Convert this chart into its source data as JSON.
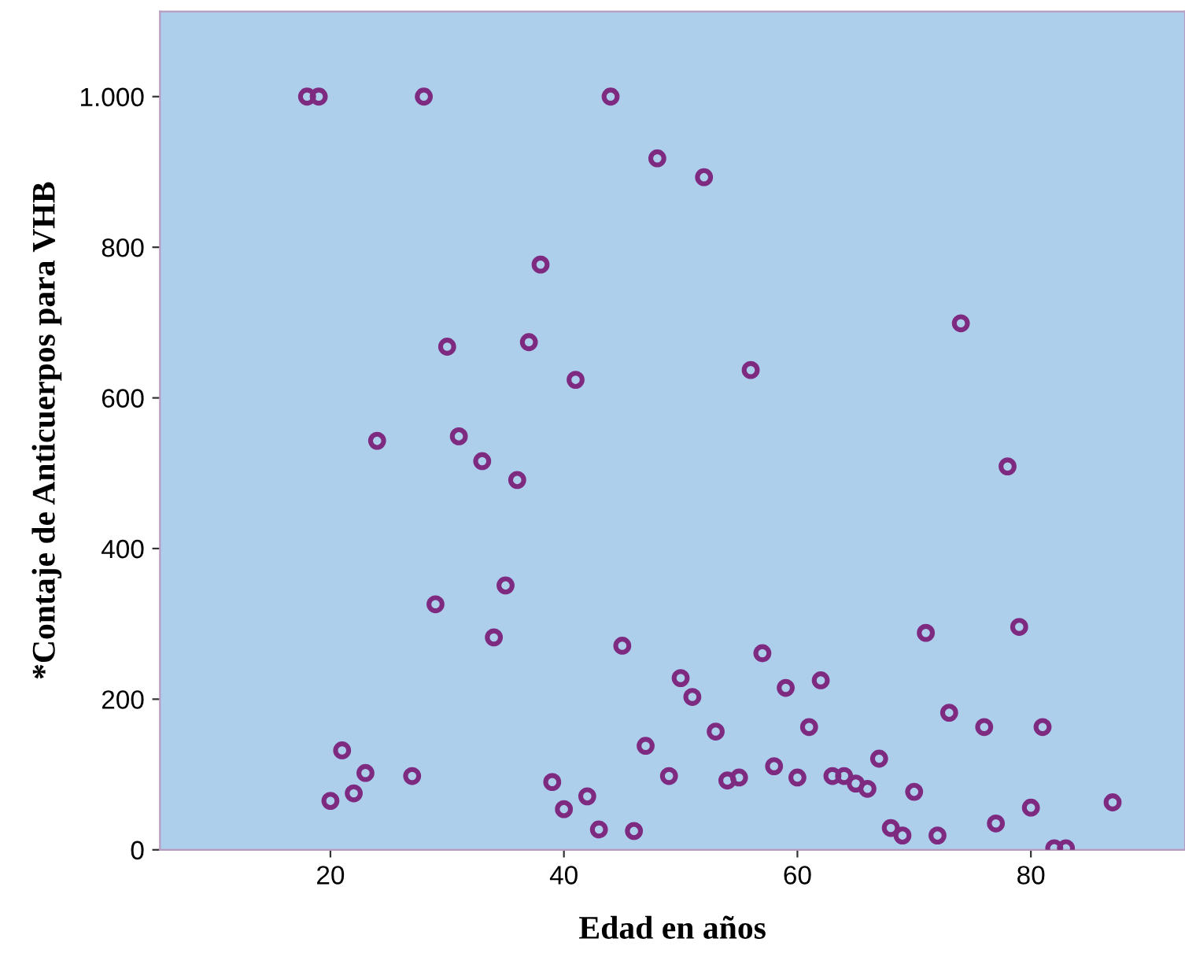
{
  "chart_data": {
    "type": "scatter",
    "xlabel": "Edad en años",
    "ylabel": "*Contaje de Anticuerpos para VHB",
    "xlim": [
      5.4,
      93.2
    ],
    "ylim": [
      0,
      1113
    ],
    "xticks": [
      20,
      40,
      60,
      80
    ],
    "yticks": [
      0,
      200,
      400,
      600,
      800,
      {
        "value": 1000,
        "label": "1.000"
      }
    ],
    "grid": false,
    "marker": "circle",
    "series": [
      {
        "color": "#7d2a80",
        "x": [
          18,
          19,
          28,
          44,
          48,
          52,
          38,
          37,
          30,
          41,
          56,
          74,
          24,
          31,
          33,
          36,
          78,
          35,
          29,
          34,
          45,
          57,
          71,
          79,
          50,
          51,
          62,
          59,
          53,
          61,
          73,
          76,
          81,
          21,
          47,
          67,
          23,
          27,
          39,
          49,
          54,
          55,
          58,
          60,
          63,
          64,
          65,
          66,
          20,
          22,
          40,
          42,
          70,
          80,
          87,
          43,
          46,
          68,
          69,
          72,
          77,
          82,
          83
        ],
        "values": [
          1000,
          1000,
          1000,
          1000,
          918,
          893,
          777,
          674,
          668,
          624,
          637,
          699,
          543,
          549,
          516,
          491,
          509,
          351,
          326,
          282,
          271,
          261,
          288,
          296,
          228,
          203,
          225,
          215,
          157,
          163,
          182,
          163,
          163,
          132,
          138,
          121,
          102,
          98,
          90,
          98,
          92,
          96,
          111,
          96,
          98,
          98,
          88,
          81,
          65,
          75,
          54,
          71,
          77,
          56,
          63,
          27,
          25,
          29,
          19,
          19,
          35,
          2,
          2
        ]
      }
    ]
  }
}
